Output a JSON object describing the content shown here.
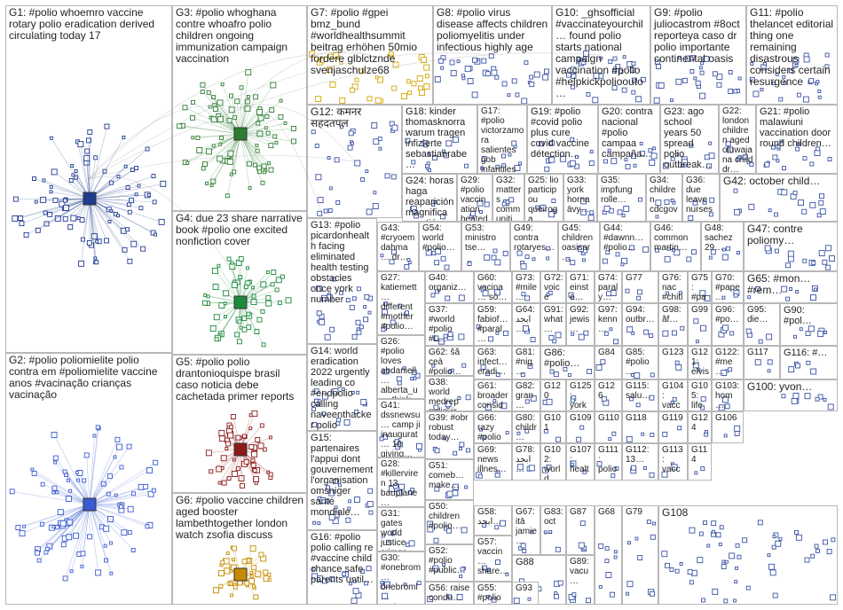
{
  "title": "",
  "colors": {
    "border": "#b8b8b8",
    "edge": "#9a9a9a",
    "node_fill": "#ffffff",
    "node_border": "#3a53a4",
    "g1": "#1f3b8f",
    "g2": "#3b5bd0",
    "g3": "#2e7d32",
    "g4": "#1b8a3a",
    "g5": "#8b1a1a",
    "g6": "#c58a00",
    "g7": "#d6a400",
    "accent_red": "#e23b3b"
  },
  "groups": [
    {
      "id": "G1",
      "label": "G1: #polio whoemro vaccine rotary polio eradication derived circulating today 17"
    },
    {
      "id": "G2",
      "label": "G2: #polio poliomielite polio contra em #poliomielite vaccine anos #vacinação crianças vacinação"
    },
    {
      "id": "G3",
      "label": "G3: #polio whoghana contre whoafro polio children ongoing immunization campaign vaccination"
    },
    {
      "id": "G4",
      "label": "G4: due 23 share narrative book #polio one excited nonfiction cover"
    },
    {
      "id": "G5",
      "label": "G5: #polio polio drantonioquispe brasil caso noticia debe cachetada primer reports"
    },
    {
      "id": "G6",
      "label": "G6: #polio vaccine children aged booster lambethtogether london watch zsofia discuss"
    },
    {
      "id": "G7",
      "label": "G7: #polio #gpei bmz_bund #worldhealthsummit beitrag erhöhen 50mio fordere glblctznde svenjaschulze68"
    },
    {
      "id": "G8",
      "label": "G8: #polio virus disease affects children poliomyelitis under infectious highly age"
    },
    {
      "id": "G9",
      "label": "G9: #polio juliocastrom #8oct reporteya caso dr polio importante continental oasis"
    },
    {
      "id": "G10",
      "label": "G10: _ghsofficial #vaccinateyourchil… found polio starts national campaign vaccination #polio #helpkickpolioouto…"
    },
    {
      "id": "G11",
      "label": "G11: #polio thelancet editorial thing one remaining disastrous considers certain resurgence"
    },
    {
      "id": "G12",
      "label": "G12: कमनर सहदतपल"
    },
    {
      "id": "G13",
      "label": "G13: #polio picardonhealth facing eliminated health testing obstacles once york number"
    },
    {
      "id": "G14",
      "label": "G14: world eradication 2022 urgently leading co #endpolio calling naveenthacker polio"
    },
    {
      "id": "G15",
      "label": "G15: partenaires l'appui dont gouvernement l'organisation omsniger santé mondiale…"
    },
    {
      "id": "G16",
      "label": "G16: #polio polio calling re #vaccine child chance safe parents until…"
    },
    {
      "id": "G17",
      "label": "G17: #polio victorzamora salientes gob infantiles vacunadas…"
    },
    {
      "id": "G18",
      "label": "G18: kinder thomasknorra warum tragen infizierte sebastianrabe…"
    },
    {
      "id": "G19",
      "label": "G19: #polio #covid polio plus cure covid vaccine détection…"
    },
    {
      "id": "G20",
      "label": "G20: contra nacional #polio campaa campaña…"
    },
    {
      "id": "G21",
      "label": "G21: #polio malawiuni vaccination door round children…"
    },
    {
      "id": "G22",
      "label": "G22: london children aged oluwajana child dr…"
    },
    {
      "id": "G23",
      "label": "G23: ago school years 50 spread polio outbreak…"
    },
    {
      "id": "G24",
      "label": "G24: horas haga reaparición magnifica cuestión…"
    },
    {
      "id": "G25",
      "label": "G25: lio participou queiroga…"
    },
    {
      "id": "G26",
      "label": "G26: #polio loves abdaniell… alberta_u… think…"
    },
    {
      "id": "G27",
      "label": "G27: katiemett… different #mother #polio…"
    },
    {
      "id": "G28",
      "label": "G28: #killerviren 13 bauplane…"
    },
    {
      "id": "G29",
      "label": "G29: #polio vaccination beatedaste…"
    },
    {
      "id": "G30",
      "label": "G30: #onebrom… onebroml… partner…"
    },
    {
      "id": "G31",
      "label": "G31: gates world justice crimes…"
    },
    {
      "id": "G32",
      "label": "G32: matters communiti…"
    },
    {
      "id": "G33",
      "label": "G33: york horna ävy…"
    },
    {
      "id": "G34",
      "label": "G34: children cdcgov…"
    },
    {
      "id": "G35",
      "label": "G35: impfung rolle…"
    },
    {
      "id": "G36",
      "label": "G36: due leave nurses…"
    },
    {
      "id": "G37",
      "label": "G37: #world #polio #L…"
    },
    {
      "id": "G38",
      "label": "G38: world medrep poliovir…"
    },
    {
      "id": "G39",
      "label": "G39: #obr robust today…"
    },
    {
      "id": "G40",
      "label": "G40: organiz…"
    },
    {
      "id": "G41",
      "label": "G41: dssnewsu… camp ji inaugurat… 19 giving…"
    },
    {
      "id": "G42",
      "label": "G42: october child…"
    },
    {
      "id": "G43",
      "label": "G43: #cryoem dahma… dr…"
    },
    {
      "id": "G44",
      "label": "G44: #dawnn… #polio…"
    },
    {
      "id": "G45",
      "label": "G45: children oasisar…"
    },
    {
      "id": "G46",
      "label": "G46: common martin…"
    },
    {
      "id": "G47",
      "label": "G47: contre poliomy…"
    },
    {
      "id": "G48",
      "label": "G48: sachez 29…"
    },
    {
      "id": "G49",
      "label": "G49: contra rotaryes…"
    },
    {
      "id": "G50",
      "label": "G50: children #polio…"
    },
    {
      "id": "G51",
      "label": "G51: comeb… make…"
    },
    {
      "id": "G52",
      "label": "G52: #polio #public…"
    },
    {
      "id": "G53",
      "label": "G53: ministro tse…"
    },
    {
      "id": "G54",
      "label": "G54: world #polio…"
    },
    {
      "id": "G55",
      "label": "G55: #polio polio…"
    },
    {
      "id": "G56",
      "label": "G56: raise condu…"
    },
    {
      "id": "G57",
      "label": "G57: vaccin… share…"
    },
    {
      "id": "G58",
      "label": "G58: ابجد…"
    },
    {
      "id": "G59",
      "label": "G59: fabiof… #paral…"
    },
    {
      "id": "G60",
      "label": "G60: vacina… só…"
    },
    {
      "id": "G61",
      "label": "G61: broader consid…"
    },
    {
      "id": "G62",
      "label": "G62: šă ceà #polio…"
    },
    {
      "id": "G63",
      "label": "G63: infect… eradi…"
    },
    {
      "id": "G64",
      "label": "G64: ابجد…"
    },
    {
      "id": "G65",
      "label": "G65: #mon… #rem…"
    },
    {
      "id": "G66",
      "label": "G66: razy #polio…"
    },
    {
      "id": "G67",
      "label": "G67: itā jamie…"
    },
    {
      "id": "G68",
      "label": "G68"
    },
    {
      "id": "G69",
      "label": "G69: news illnes…"
    },
    {
      "id": "G70",
      "label": "G70: #pape… #polio…"
    },
    {
      "id": "G71",
      "label": "G71: einste… #polio…"
    },
    {
      "id": "G72",
      "label": "G72: voice world…"
    },
    {
      "id": "G73",
      "label": "G73: #mile… 10th…"
    },
    {
      "id": "G74",
      "label": "G74: paraly… silent…"
    },
    {
      "id": "G75",
      "label": "G75: #pape… nacio…"
    },
    {
      "id": "G76",
      "label": "G76: nac #chiti…"
    },
    {
      "id": "G77",
      "label": "G77"
    },
    {
      "id": "G78",
      "label": "G78: ابجد…"
    },
    {
      "id": "G79",
      "label": "G79"
    },
    {
      "id": "G80",
      "label": "G80: childr…"
    },
    {
      "id": "G81",
      "label": "G81: #nig…"
    },
    {
      "id": "G82",
      "label": "G82: gran…"
    },
    {
      "id": "G83",
      "label": "G83: oct…"
    },
    {
      "id": "G84",
      "label": "G84"
    },
    {
      "id": "G85",
      "label": "G85: #polio…"
    },
    {
      "id": "G86",
      "label": "G86: #polio…"
    },
    {
      "id": "G87",
      "label": "G87"
    },
    {
      "id": "G88",
      "label": "G88"
    },
    {
      "id": "G89",
      "label": "G89: vacu…"
    },
    {
      "id": "G90",
      "label": "G90: #pol…"
    },
    {
      "id": "G91",
      "label": "G91: what…"
    },
    {
      "id": "G92",
      "label": "G92: jewis…"
    },
    {
      "id": "G93",
      "label": "G93"
    },
    {
      "id": "G94",
      "label": "G94: outbr…"
    },
    {
      "id": "G95",
      "label": "G95: die…"
    },
    {
      "id": "G96",
      "label": "G96: #po…"
    },
    {
      "id": "G97",
      "label": "G97: kenn…"
    },
    {
      "id": "G98",
      "label": "G98: ăf…"
    },
    {
      "id": "G99",
      "label": "G99"
    },
    {
      "id": "G100",
      "label": "G100: yvon…"
    },
    {
      "id": "G101",
      "label": "G101"
    },
    {
      "id": "G102",
      "label": "G102: world"
    },
    {
      "id": "G103",
      "label": "G103: hom…"
    },
    {
      "id": "G104",
      "label": "G104: vacc…"
    },
    {
      "id": "G105",
      "label": "G105: life…"
    },
    {
      "id": "G106",
      "label": "G106"
    },
    {
      "id": "G107",
      "label": "G107: healt…"
    },
    {
      "id": "G108",
      "label": "G108"
    },
    {
      "id": "G109",
      "label": "G109"
    },
    {
      "id": "G110",
      "label": "G110"
    },
    {
      "id": "G111",
      "label": "G111: polio…"
    },
    {
      "id": "G112",
      "label": "G112: 13…"
    },
    {
      "id": "G113",
      "label": "G113: vacc…"
    },
    {
      "id": "G114",
      "label": "G114"
    },
    {
      "id": "G115",
      "label": "G115: salu…"
    },
    {
      "id": "G116",
      "label": "G116: #…"
    },
    {
      "id": "G117",
      "label": "G117"
    },
    {
      "id": "G118",
      "label": "G118"
    },
    {
      "id": "G119",
      "label": "G119"
    },
    {
      "id": "G120",
      "label": "G120"
    },
    {
      "id": "G121",
      "label": "G121: elvis…"
    },
    {
      "id": "G122",
      "label": "G122: #me…"
    },
    {
      "id": "G123",
      "label": "G123"
    },
    {
      "id": "G124",
      "label": "G124"
    },
    {
      "id": "G125",
      "label": "G125: york…"
    },
    {
      "id": "G126",
      "label": "G126"
    }
  ]
}
